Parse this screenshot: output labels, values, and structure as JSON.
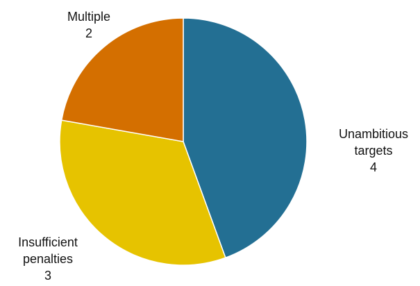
{
  "chart_data": {
    "type": "pie",
    "title": "",
    "slices": [
      {
        "label_lines": [
          "Unambitious",
          "targets"
        ],
        "value": 4,
        "value_text": "4",
        "color": "#236f93"
      },
      {
        "label_lines": [
          "Insufficient",
          "penalties"
        ],
        "value": 3,
        "value_text": "3",
        "color": "#e6c300"
      },
      {
        "label_lines": [
          "Multiple"
        ],
        "value": 2,
        "value_text": "2",
        "color": "#d46f00"
      }
    ]
  }
}
